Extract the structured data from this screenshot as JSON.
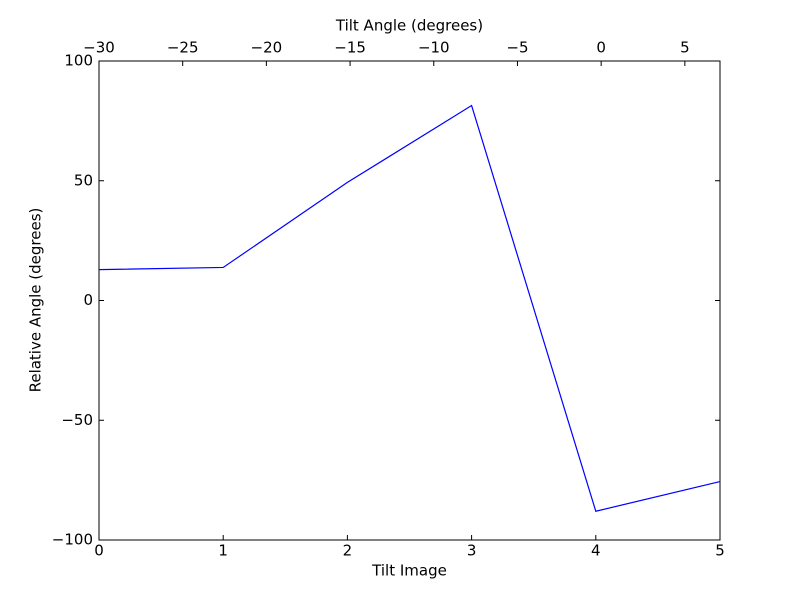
{
  "chart_data": {
    "type": "line",
    "xlabel": "Tilt Image",
    "ylabel": "Relative Angle (degrees)",
    "x2label": "Tilt Angle (degrees)",
    "x": [
      0,
      1,
      2,
      3,
      4,
      5
    ],
    "series": [
      {
        "color": "#0000ff",
        "values": [
          12.9,
          13.8,
          49.3,
          81.4,
          -88,
          -75.6
        ]
      }
    ],
    "xlim": [
      0,
      5
    ],
    "xticks": [
      0,
      1,
      2,
      3,
      4,
      5
    ],
    "ylim": [
      -100,
      100
    ],
    "yticks": [
      {
        "value": -100,
        "label": "−100"
      },
      {
        "value": -50,
        "label": "−50"
      },
      0,
      50,
      100
    ],
    "x2lim": [
      -30,
      7.1
    ],
    "x2ticks": [
      {
        "value": -30,
        "label": "−30"
      },
      {
        "value": -25,
        "label": "−25"
      },
      {
        "value": -20,
        "label": "−20"
      },
      {
        "value": -15,
        "label": "−15"
      },
      {
        "value": -10,
        "label": "−10"
      },
      {
        "value": -5,
        "label": "−5"
      },
      0,
      5
    ]
  }
}
